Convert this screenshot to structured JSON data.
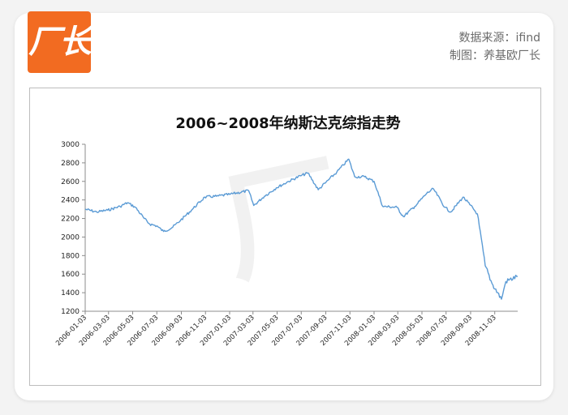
{
  "header": {
    "logo_text": "厂长",
    "source_line": "数据来源：ifind",
    "author_line": "制图：养基欧厂长"
  },
  "colors": {
    "accent": "#f26b21",
    "line": "#5b9bd5",
    "axis": "#8c8c8c"
  },
  "chart_data": {
    "type": "line",
    "title": "2006~2008年纳斯达克综指走势",
    "xlabel": "",
    "ylabel": "",
    "ylim": [
      1200,
      3000
    ],
    "yticks": [
      1200,
      1400,
      1600,
      1800,
      2000,
      2200,
      2400,
      2600,
      2800,
      3000
    ],
    "xticks": [
      "2006-01-03",
      "2006-03-03",
      "2006-05-03",
      "2006-07-03",
      "2006-09-03",
      "2006-11-03",
      "2007-01-03",
      "2007-03-03",
      "2007-05-03",
      "2007-07-03",
      "2007-09-03",
      "2007-11-03",
      "2008-01-03",
      "2008-03-03",
      "2008-05-03",
      "2008-07-03",
      "2008-09-03",
      "2008-11-03"
    ],
    "grid": false,
    "legend": "none",
    "series": [
      {
        "x": [
          "2006-01-03",
          "2006-02-01",
          "2006-03-01",
          "2006-04-01",
          "2006-04-20",
          "2006-05-10",
          "2006-06-01",
          "2006-06-15",
          "2006-07-03",
          "2006-07-20",
          "2006-08-10",
          "2006-09-01",
          "2006-10-01",
          "2006-11-01",
          "2006-12-01",
          "2007-01-03",
          "2007-02-20",
          "2007-03-05",
          "2007-04-01",
          "2007-05-01",
          "2007-06-01",
          "2007-07-01",
          "2007-07-20",
          "2007-08-15",
          "2007-09-01",
          "2007-10-01",
          "2007-10-31",
          "2007-11-15",
          "2007-12-10",
          "2008-01-03",
          "2008-01-25",
          "2008-03-01",
          "2008-03-17",
          "2008-04-15",
          "2008-05-15",
          "2008-06-01",
          "2008-06-30",
          "2008-07-15",
          "2008-08-15",
          "2008-09-01",
          "2008-09-20",
          "2008-10-10",
          "2008-10-27",
          "2008-11-20",
          "2008-12-01",
          "2008-12-31"
        ],
        "values": [
          2300,
          2270,
          2290,
          2330,
          2370,
          2320,
          2200,
          2140,
          2120,
          2060,
          2100,
          2180,
          2300,
          2430,
          2440,
          2460,
          2500,
          2340,
          2440,
          2530,
          2600,
          2660,
          2690,
          2510,
          2580,
          2700,
          2840,
          2650,
          2650,
          2600,
          2330,
          2320,
          2220,
          2330,
          2470,
          2520,
          2320,
          2270,
          2430,
          2350,
          2250,
          1690,
          1500,
          1330,
          1520,
          1577
        ]
      }
    ]
  }
}
